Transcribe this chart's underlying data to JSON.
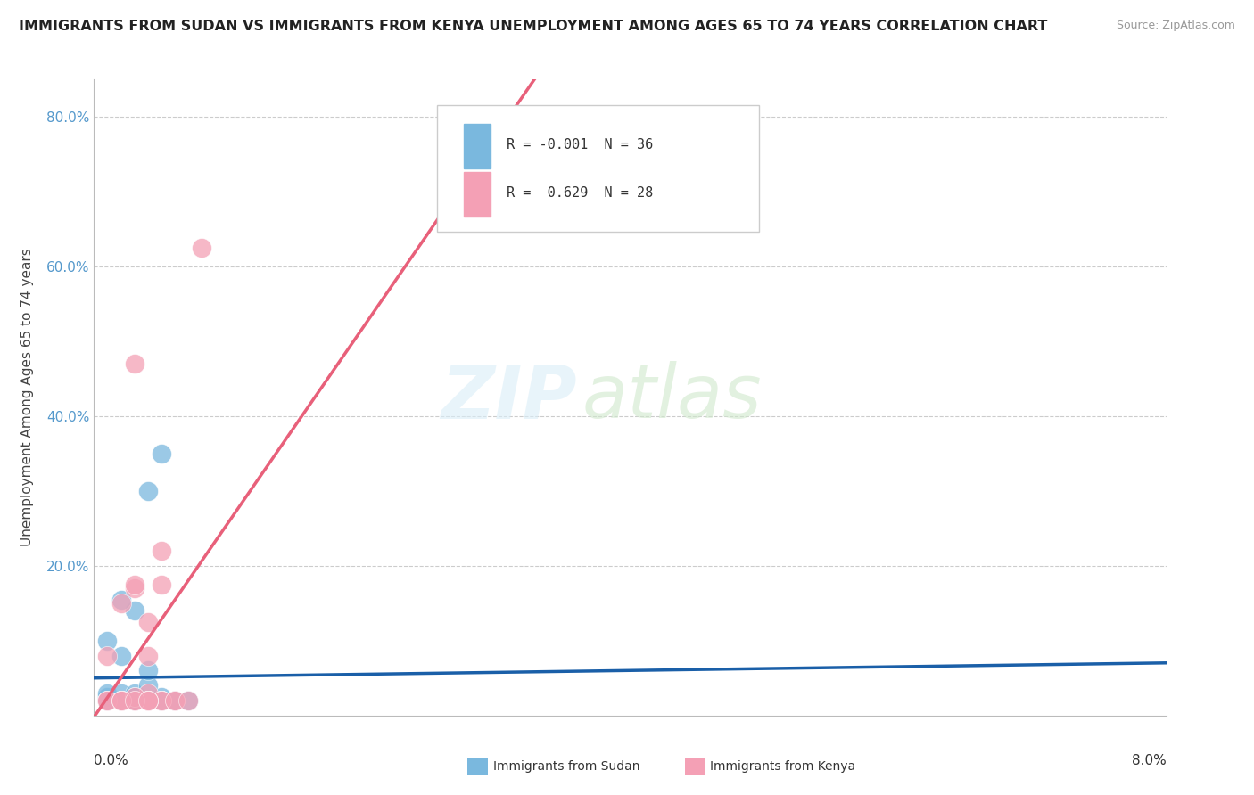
{
  "title": "IMMIGRANTS FROM SUDAN VS IMMIGRANTS FROM KENYA UNEMPLOYMENT AMONG AGES 65 TO 74 YEARS CORRELATION CHART",
  "source": "Source: ZipAtlas.com",
  "ylabel": "Unemployment Among Ages 65 to 74 years",
  "legend_sudan_r": "-0.001",
  "legend_sudan_n": "36",
  "legend_kenya_r": "0.629",
  "legend_kenya_n": "28",
  "sudan_color": "#7ab8de",
  "kenya_color": "#f4a0b5",
  "sudan_line_color": "#1a5fa8",
  "kenya_line_color": "#e8607a",
  "sudan_scatter_x": [
    0.001,
    0.002,
    0.003,
    0.004,
    0.005,
    0.006,
    0.001,
    0.002,
    0.003,
    0.004,
    0.005,
    0.006,
    0.001,
    0.002,
    0.003,
    0.004,
    0.005,
    0.006,
    0.001,
    0.002,
    0.003,
    0.004,
    0.005,
    0.006,
    0.007,
    0.002,
    0.003,
    0.004,
    0.005,
    0.001,
    0.002,
    0.003,
    0.004,
    0.002,
    0.004,
    0.006
  ],
  "sudan_scatter_y": [
    0.02,
    0.02,
    0.02,
    0.02,
    0.025,
    0.02,
    0.025,
    0.02,
    0.025,
    0.02,
    0.02,
    0.02,
    0.03,
    0.03,
    0.03,
    0.04,
    0.02,
    0.02,
    0.1,
    0.08,
    0.14,
    0.02,
    0.02,
    0.02,
    0.02,
    0.02,
    0.025,
    0.3,
    0.35,
    0.02,
    0.155,
    0.02,
    0.02,
    0.02,
    0.06,
    0.02
  ],
  "kenya_scatter_x": [
    0.001,
    0.002,
    0.003,
    0.004,
    0.005,
    0.006,
    0.001,
    0.002,
    0.003,
    0.004,
    0.005,
    0.001,
    0.002,
    0.003,
    0.004,
    0.005,
    0.006,
    0.002,
    0.003,
    0.004,
    0.003,
    0.004,
    0.007,
    0.008,
    0.004,
    0.003,
    0.005,
    0.004
  ],
  "kenya_scatter_y": [
    0.02,
    0.02,
    0.02,
    0.03,
    0.02,
    0.02,
    0.08,
    0.15,
    0.17,
    0.125,
    0.22,
    0.02,
    0.02,
    0.025,
    0.02,
    0.02,
    0.02,
    0.02,
    0.175,
    0.02,
    0.47,
    0.02,
    0.02,
    0.625,
    0.08,
    0.02,
    0.175,
    0.02
  ],
  "x_min": 0.0,
  "x_max": 0.08,
  "y_min": 0.0,
  "y_max": 0.85,
  "yticks": [
    0.0,
    0.2,
    0.4,
    0.6,
    0.8
  ],
  "ytick_labels": [
    "",
    "20.0%",
    "40.0%",
    "60.0%",
    "80.0%"
  ]
}
